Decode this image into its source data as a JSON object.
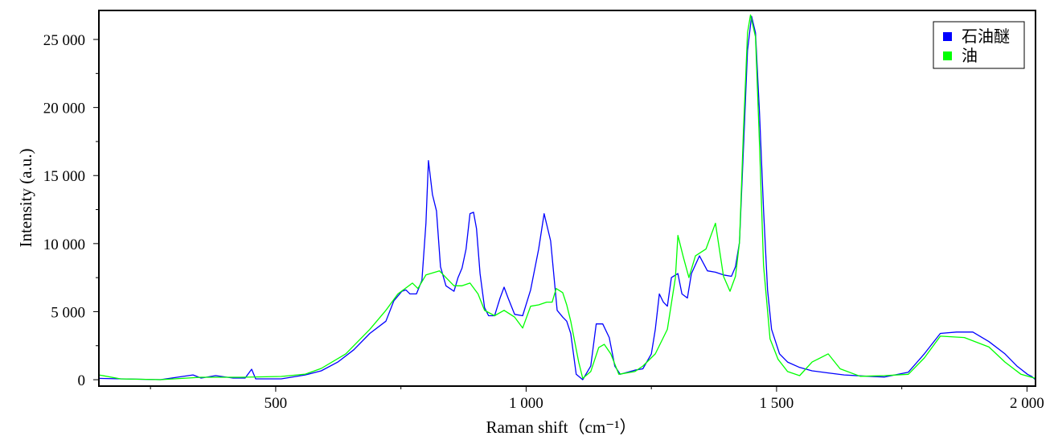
{
  "chart_data": {
    "type": "line",
    "title": "",
    "xlabel": "Raman shift（cm⁻¹）",
    "ylabel": "Intensity (a.u.)",
    "xlim": [
      147,
      2017
    ],
    "ylim": [
      -470,
      27130
    ],
    "x_ticks": [
      500,
      1000,
      1500,
      2000
    ],
    "x_tick_labels": [
      "500",
      "1 000",
      "1 500",
      "2 000"
    ],
    "x_minor_ticks": [
      250,
      750,
      1250,
      1750
    ],
    "y_ticks": [
      0,
      5000,
      10000,
      15000,
      20000,
      25000
    ],
    "y_tick_labels": [
      "0",
      "5 000",
      "10 000",
      "15 000",
      "20 000",
      "25 000"
    ],
    "y_minor_ticks": [
      2500,
      7500,
      12500,
      17500,
      22500
    ],
    "grid": false,
    "legend_position": "top-right",
    "series": [
      {
        "name": "石油醚",
        "color": "#0000ff",
        "x": [
          147,
          270,
          335,
          351,
          380,
          415,
          439,
          452,
          460,
          511,
          559,
          591,
          624,
          656,
          688,
          720,
          736,
          752,
          760,
          768,
          781,
          792,
          800,
          805,
          813,
          821,
          829,
          840,
          856,
          864,
          872,
          880,
          888,
          895,
          901,
          908,
          917,
          925,
          937,
          948,
          956,
          964,
          977,
          993,
          1009,
          1025,
          1036,
          1049,
          1062,
          1073,
          1081,
          1089,
          1100,
          1113,
          1129,
          1140,
          1153,
          1166,
          1177,
          1188,
          1217,
          1233,
          1250,
          1258,
          1266,
          1274,
          1282,
          1290,
          1303,
          1311,
          1322,
          1330,
          1346,
          1362,
          1378,
          1394,
          1410,
          1418,
          1426,
          1434,
          1442,
          1450,
          1458,
          1466,
          1474,
          1482,
          1490,
          1506,
          1522,
          1546,
          1571,
          1603,
          1635,
          1683,
          1715,
          1763,
          1795,
          1827,
          1859,
          1892,
          1924,
          1956,
          1980,
          2001,
          2009,
          2017
        ],
        "y": [
          100,
          0,
          350,
          120,
          300,
          120,
          120,
          770,
          60,
          60,
          350,
          650,
          1300,
          2200,
          3400,
          4300,
          5800,
          6500,
          6600,
          6300,
          6300,
          7300,
          11500,
          16100,
          13600,
          12400,
          8300,
          6900,
          6500,
          7500,
          8200,
          9600,
          12200,
          12300,
          11100,
          7800,
          5300,
          4700,
          4700,
          6000,
          6800,
          6000,
          4800,
          4700,
          6600,
          9600,
          12200,
          10200,
          5100,
          4600,
          4300,
          3400,
          400,
          0,
          1000,
          4100,
          4100,
          3100,
          1000,
          400,
          700,
          800,
          1900,
          3700,
          6300,
          5700,
          5400,
          7500,
          7800,
          6300,
          6000,
          7800,
          9100,
          8000,
          7900,
          7700,
          7600,
          8300,
          10100,
          17100,
          24200,
          26700,
          25500,
          19600,
          12500,
          6600,
          3700,
          1900,
          1300,
          900,
          650,
          500,
          350,
          250,
          200,
          550,
          1900,
          3400,
          3500,
          3500,
          2800,
          1900,
          1000,
          400,
          250,
          0
        ]
      },
      {
        "name": "油",
        "color": "#00ff00",
        "x": [
          147,
          190,
          270,
          351,
          431,
          511,
          559,
          591,
          640,
          688,
          720,
          744,
          773,
          784,
          800,
          827,
          840,
          856,
          872,
          888,
          904,
          917,
          937,
          956,
          977,
          993,
          1009,
          1025,
          1041,
          1052,
          1060,
          1073,
          1081,
          1089,
          1105,
          1113,
          1129,
          1145,
          1156,
          1169,
          1185,
          1217,
          1233,
          1258,
          1282,
          1298,
          1303,
          1314,
          1325,
          1338,
          1359,
          1378,
          1394,
          1407,
          1418,
          1426,
          1434,
          1442,
          1448,
          1458,
          1466,
          1474,
          1487,
          1503,
          1522,
          1546,
          1571,
          1603,
          1627,
          1667,
          1715,
          1763,
          1795,
          1827,
          1875,
          1924,
          1956,
          1988,
          2017
        ],
        "y": [
          350,
          60,
          0,
          180,
          180,
          240,
          410,
          830,
          1900,
          3700,
          5100,
          6300,
          7100,
          6700,
          7700,
          8000,
          7500,
          6900,
          6900,
          7100,
          6300,
          5100,
          4700,
          5100,
          4600,
          3800,
          5400,
          5500,
          5700,
          5700,
          6700,
          6400,
          5500,
          4300,
          1300,
          100,
          600,
          2360,
          2600,
          1900,
          400,
          600,
          1000,
          1900,
          3700,
          7500,
          10600,
          9000,
          7500,
          9100,
          9600,
          11500,
          7600,
          6500,
          7600,
          10100,
          18400,
          25500,
          26800,
          25200,
          17300,
          8400,
          3000,
          1500,
          600,
          300,
          1300,
          1900,
          800,
          250,
          300,
          400,
          1600,
          3200,
          3100,
          2400,
          1300,
          400,
          100
        ]
      }
    ]
  }
}
